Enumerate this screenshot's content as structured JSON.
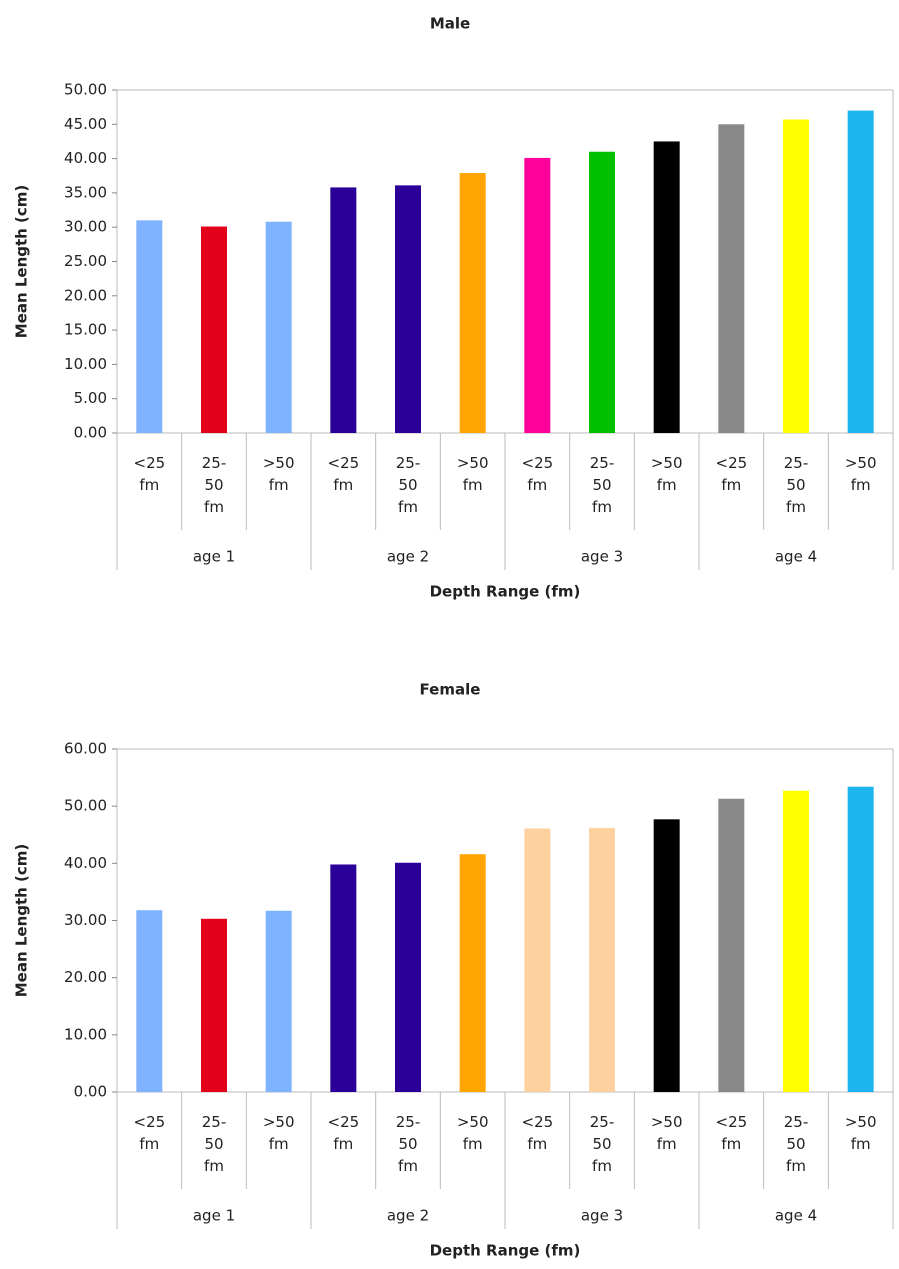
{
  "chart_data": [
    {
      "type": "bar",
      "title": "Male",
      "x_label": "Depth Range (fm)",
      "y_label": "Mean Length (cm)",
      "groups": [
        "age 1",
        "age 2",
        "age 3",
        "age 4"
      ],
      "subcategories": [
        "<25 fm",
        "25-50 fm",
        ">50 fm"
      ],
      "values": [
        31.0,
        30.1,
        30.8,
        35.8,
        36.1,
        37.9,
        40.1,
        41.0,
        42.5,
        45.0,
        45.7,
        47.0
      ],
      "colors": [
        "#7fb2ff",
        "#e2001a",
        "#7fb2ff",
        "#2b0099",
        "#2b0099",
        "#ffa500",
        "#ff0099",
        "#00c000",
        "#000000",
        "#888888",
        "#ffff00",
        "#1eb4f0"
      ],
      "ylim": [
        0,
        50
      ],
      "yticks": [
        {
          "value": 0,
          "label": "0.00"
        },
        {
          "value": 5,
          "label": "5.00"
        },
        {
          "value": 10,
          "label": "10.00"
        },
        {
          "value": 15,
          "label": "15.00"
        },
        {
          "value": 20,
          "label": "20.00"
        },
        {
          "value": 25,
          "label": "25.00"
        },
        {
          "value": 30,
          "label": "30.00"
        },
        {
          "value": 35,
          "label": "35.00"
        },
        {
          "value": 40,
          "label": "40.00"
        },
        {
          "value": 45,
          "label": "45.00"
        },
        {
          "value": 50,
          "label": "50.00"
        }
      ]
    },
    {
      "type": "bar",
      "title": "Female",
      "x_label": "Depth Range (fm)",
      "y_label": "Mean Length (cm)",
      "groups": [
        "age 1",
        "age 2",
        "age 3",
        "age 4"
      ],
      "subcategories": [
        "<25 fm",
        "25-50 fm",
        ">50 fm"
      ],
      "values": [
        31.8,
        30.3,
        31.7,
        39.8,
        40.1,
        41.6,
        46.1,
        46.2,
        47.7,
        51.3,
        52.7,
        53.4
      ],
      "colors": [
        "#7fb2ff",
        "#e2001a",
        "#7fb2ff",
        "#2b0099",
        "#2b0099",
        "#ffa500",
        "#ffd0a0",
        "#ffd0a0",
        "#000000",
        "#888888",
        "#ffff00",
        "#1eb4f0"
      ],
      "ylim": [
        0,
        60
      ],
      "yticks": [
        {
          "value": 0,
          "label": "0.00"
        },
        {
          "value": 10,
          "label": "10.00"
        },
        {
          "value": 20,
          "label": "20.00"
        },
        {
          "value": 30,
          "label": "30.00"
        },
        {
          "value": 40,
          "label": "40.00"
        },
        {
          "value": 50,
          "label": "50.00"
        },
        {
          "value": 60,
          "label": "60.00"
        }
      ]
    }
  ]
}
